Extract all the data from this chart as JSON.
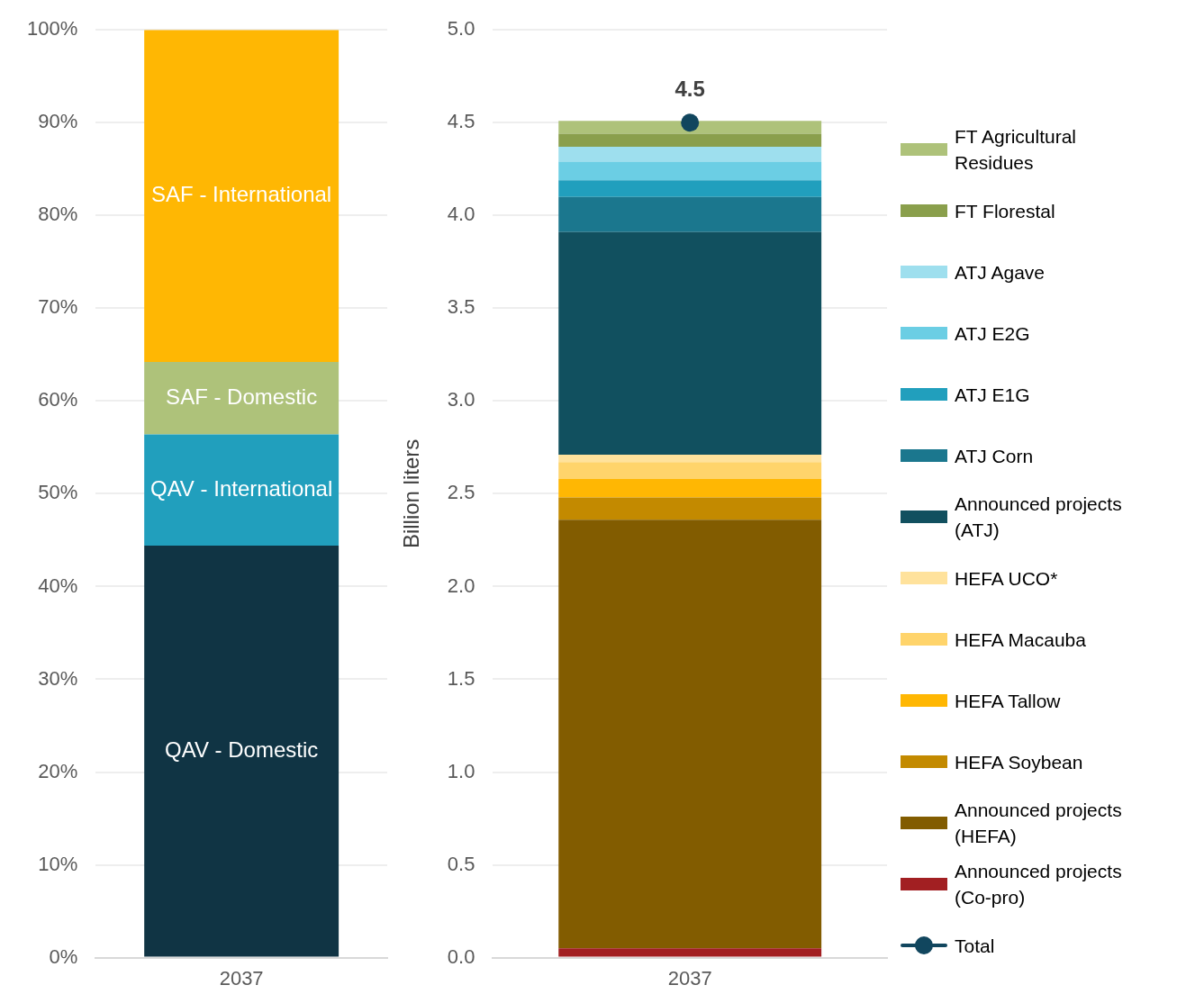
{
  "chart_data": [
    {
      "type": "bar",
      "stacked": true,
      "categories": [
        "2037"
      ],
      "ylim": [
        0,
        100
      ],
      "yticks": [
        {
          "value": 0,
          "label": "0%"
        },
        {
          "value": 10,
          "label": "10%"
        },
        {
          "value": 20,
          "label": "20%"
        },
        {
          "value": 30,
          "label": "30%"
        },
        {
          "value": 40,
          "label": "40%"
        },
        {
          "value": 50,
          "label": "50%"
        },
        {
          "value": 60,
          "label": "60%"
        },
        {
          "value": 70,
          "label": "70%"
        },
        {
          "value": 80,
          "label": "80%"
        },
        {
          "value": 90,
          "label": "90%"
        },
        {
          "value": 100,
          "label": "100%"
        }
      ],
      "grid": "y",
      "series": [
        {
          "name": "QAV - Domestic",
          "color": "#103444",
          "values": [
            44.4
          ]
        },
        {
          "name": "QAV - International",
          "color": "#219fbd",
          "values": [
            12.0
          ]
        },
        {
          "name": "SAF - Domestic",
          "color": "#aec27a",
          "values": [
            7.8
          ]
        },
        {
          "name": "SAF - International",
          "color": "#ffb703",
          "values": [
            35.8
          ]
        }
      ]
    },
    {
      "type": "bar",
      "stacked": true,
      "categories": [
        "2037"
      ],
      "ylabel": "Billion liters",
      "ylim": [
        0,
        5
      ],
      "yticks": [
        {
          "value": 0,
          "label": "0.0"
        },
        {
          "value": 0.5,
          "label": "0.5"
        },
        {
          "value": 1,
          "label": "1.0"
        },
        {
          "value": 1.5,
          "label": "1.5"
        },
        {
          "value": 2,
          "label": "2.0"
        },
        {
          "value": 2.5,
          "label": "2.5"
        },
        {
          "value": 3,
          "label": "3.0"
        },
        {
          "value": 3.5,
          "label": "3.5"
        },
        {
          "value": 4,
          "label": "4.0"
        },
        {
          "value": 4.5,
          "label": "4.5"
        },
        {
          "value": 5,
          "label": "5.0"
        }
      ],
      "grid": "y",
      "legend": "right",
      "series": [
        {
          "name": "Announced projects (Co-pro)",
          "color": "#a21f22",
          "values": [
            0.05
          ]
        },
        {
          "name": "Announced projects (HEFA)",
          "color": "#825c00",
          "values": [
            2.31
          ]
        },
        {
          "name": "HEFA Soybean",
          "color": "#c38a00",
          "values": [
            0.12
          ]
        },
        {
          "name": "HEFA Tallow",
          "color": "#ffb703",
          "values": [
            0.1
          ]
        },
        {
          "name": "HEFA Macauba",
          "color": "#ffd46b",
          "values": [
            0.09
          ]
        },
        {
          "name": "HEFA UCO*",
          "color": "#ffe29c",
          "values": [
            0.04
          ]
        },
        {
          "name": "Announced projects (ATJ)",
          "color": "#11505f",
          "values": [
            1.2
          ]
        },
        {
          "name": "ATJ Corn",
          "color": "#1b778e",
          "values": [
            0.19
          ]
        },
        {
          "name": "ATJ E1G",
          "color": "#219fbd",
          "values": [
            0.09
          ]
        },
        {
          "name": "ATJ E2G",
          "color": "#6bcee4",
          "values": [
            0.1
          ]
        },
        {
          "name": "ATJ Agave",
          "color": "#9edfee",
          "values": [
            0.08
          ]
        },
        {
          "name": "FT Florestal",
          "color": "#8a9f4c",
          "values": [
            0.07
          ]
        },
        {
          "name": "FT Agricultural Residues",
          "color": "#aec27a",
          "values": [
            0.07
          ]
        },
        {
          "name": "Total",
          "type": "line",
          "marker": "circle",
          "color": "#11465e",
          "values": [
            4.5
          ],
          "value_labels": [
            "4.5"
          ]
        }
      ]
    }
  ]
}
